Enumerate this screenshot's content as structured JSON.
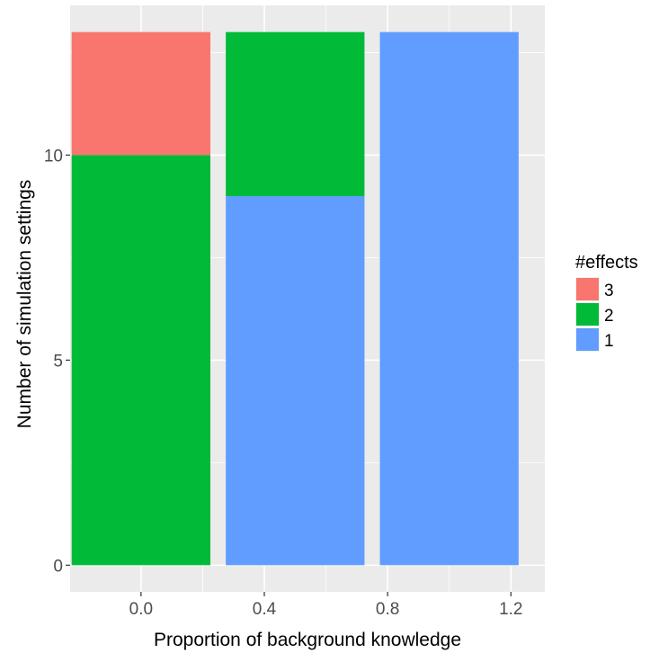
{
  "chart_data": {
    "type": "bar",
    "stacked": true,
    "xlabel": "Proportion of background knowledge",
    "ylabel": "Number of simulation settings",
    "x_ticks": [
      "0.0",
      "0.4",
      "0.8",
      "1.2"
    ],
    "x_tick_values": [
      0.0,
      0.4,
      0.8,
      1.2
    ],
    "y_ticks": [
      "0",
      "5",
      "10"
    ],
    "y_tick_values": [
      0,
      5,
      10
    ],
    "xlim": [
      -0.23,
      1.31
    ],
    "ylim": [
      -0.65,
      13.65
    ],
    "categories": [
      0.0,
      0.5,
      1.0
    ],
    "bar_width": 0.45,
    "series": [
      {
        "name": "1",
        "color": "#619CFF",
        "values": [
          0,
          9,
          13
        ]
      },
      {
        "name": "2",
        "color": "#00BA38",
        "values": [
          10,
          4,
          0
        ]
      },
      {
        "name": "3",
        "color": "#F8766D",
        "values": [
          3,
          0,
          0
        ]
      }
    ],
    "legend": {
      "title": "#effects",
      "position": "right",
      "order": [
        "3",
        "2",
        "1"
      ]
    },
    "grid": true,
    "panel_background": "#EBEBEB",
    "grid_color": "#FFFFFF"
  }
}
